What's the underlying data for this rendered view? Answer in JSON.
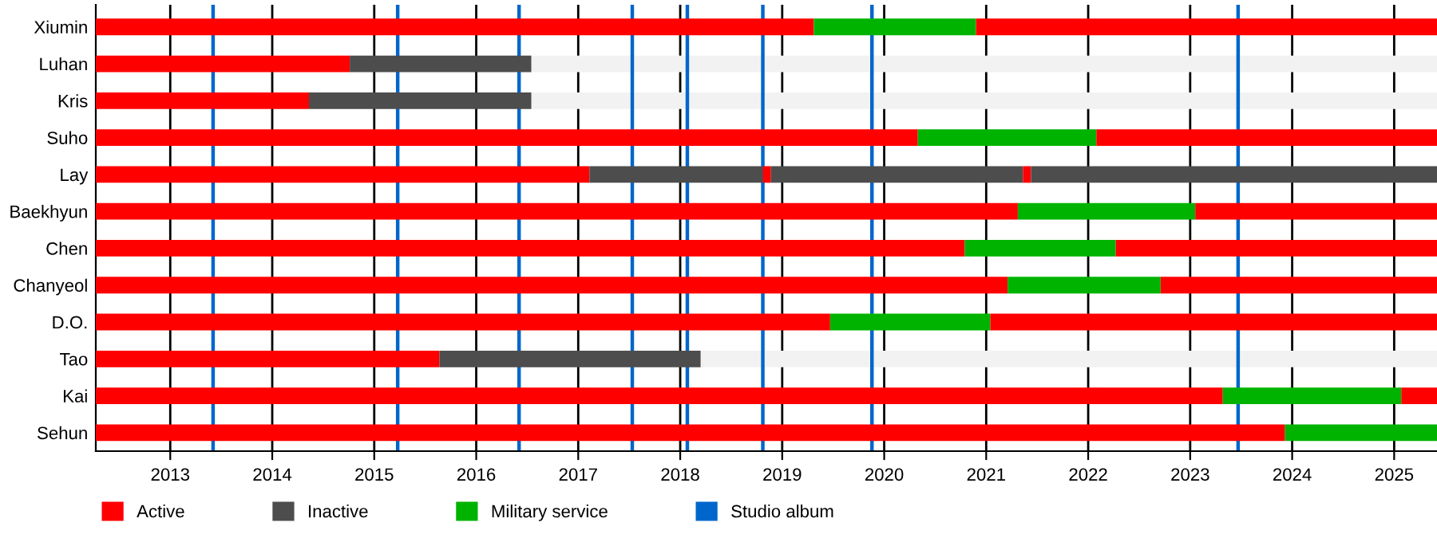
{
  "chart_data": {
    "type": "bar",
    "orientation": "horizontal",
    "categories": [
      "Xiumin",
      "Luhan",
      "Kris",
      "Suho",
      "Lay",
      "Baekhyun",
      "Chen",
      "Chanyeol",
      "D.O.",
      "Tao",
      "Kai",
      "Sehun"
    ],
    "series": [
      {
        "color": "#f2f2f2",
        "base": [
          null,
          2016.54,
          2016.54,
          null,
          null,
          null,
          null,
          null,
          null,
          2018.2,
          null,
          null
        ],
        "values": [
          null,
          8.88,
          8.88,
          null,
          null,
          null,
          null,
          null,
          null,
          7.22,
          null,
          null
        ]
      },
      {
        "name": "Active",
        "color": "#ff0000",
        "base": [
          2012.27,
          2012.27,
          2012.27,
          2012.27,
          2012.27,
          2012.27,
          2012.27,
          2012.27,
          2012.27,
          2012.27,
          2012.27,
          2012.27
        ],
        "values": [
          7.04,
          2.49,
          2.09,
          8.06,
          4.84,
          9.04,
          8.52,
          8.94,
          7.2,
          3.37,
          11.05,
          11.66
        ]
      },
      {
        "name": "Inactive",
        "color": "#4d4d4d",
        "base": [
          null,
          2014.76,
          2014.36,
          null,
          2017.11,
          null,
          null,
          null,
          null,
          2015.64,
          null,
          null
        ],
        "values": [
          null,
          1.78,
          2.18,
          null,
          1.7,
          null,
          null,
          null,
          null,
          2.56,
          null,
          null
        ]
      },
      {
        "name": "Military service",
        "color": "#00b300",
        "base": [
          2019.31,
          null,
          null,
          2020.33,
          null,
          2021.31,
          2020.79,
          2021.21,
          2019.47,
          null,
          2023.32,
          2023.93
        ],
        "values": [
          1.59,
          null,
          null,
          1.75,
          null,
          1.74,
          1.48,
          1.5,
          1.57,
          null,
          1.75,
          1.49
        ]
      },
      {
        "color": "#ff0000",
        "base": [
          2020.9,
          null,
          null,
          2022.08,
          2018.81,
          2023.05,
          2022.27,
          2022.71,
          2021.04,
          null,
          2025.07,
          null
        ],
        "values": [
          4.52,
          null,
          null,
          3.34,
          0.08,
          2.37,
          3.15,
          2.71,
          4.38,
          null,
          0.35,
          null
        ]
      },
      {
        "color": "#4d4d4d",
        "base": [
          null,
          null,
          null,
          null,
          2018.89,
          null,
          null,
          null,
          null,
          null,
          null,
          null
        ],
        "values": [
          null,
          null,
          null,
          null,
          2.47,
          null,
          null,
          null,
          null,
          null,
          null,
          null
        ]
      },
      {
        "color": "#ff0000",
        "base": [
          null,
          null,
          null,
          null,
          2021.36,
          null,
          null,
          null,
          null,
          null,
          null,
          null
        ],
        "values": [
          null,
          null,
          null,
          null,
          0.08,
          null,
          null,
          null,
          null,
          null,
          null,
          null
        ]
      },
      {
        "color": "#4d4d4d",
        "base": [
          null,
          null,
          null,
          null,
          2021.44,
          null,
          null,
          null,
          null,
          null,
          null,
          null
        ],
        "values": [
          null,
          null,
          null,
          null,
          3.98,
          null,
          null,
          null,
          null,
          null,
          null,
          null
        ]
      }
    ],
    "ref_lines": [
      {
        "axis": "x",
        "value": 2013.42,
        "label": "Studio album",
        "color": "#0066cc"
      },
      {
        "axis": "x",
        "value": 2015.23,
        "color": "#0066cc"
      },
      {
        "axis": "x",
        "value": 2016.42,
        "color": "#0066cc"
      },
      {
        "axis": "x",
        "value": 2017.53,
        "color": "#0066cc"
      },
      {
        "axis": "x",
        "value": 2018.07,
        "color": "#0066cc"
      },
      {
        "axis": "x",
        "value": 2018.81,
        "color": "#0066cc"
      },
      {
        "axis": "x",
        "value": 2019.88,
        "color": "#0066cc"
      },
      {
        "axis": "x",
        "value": 2023.47,
        "color": "#0066cc"
      }
    ],
    "xlim": [
      2012.27,
      2025.42
    ],
    "xticks": [
      2013,
      2014,
      2015,
      2016,
      2017,
      2018,
      2019,
      2020,
      2021,
      2022,
      2023,
      2024,
      2025
    ],
    "grid": "x",
    "legend": "bottom"
  }
}
